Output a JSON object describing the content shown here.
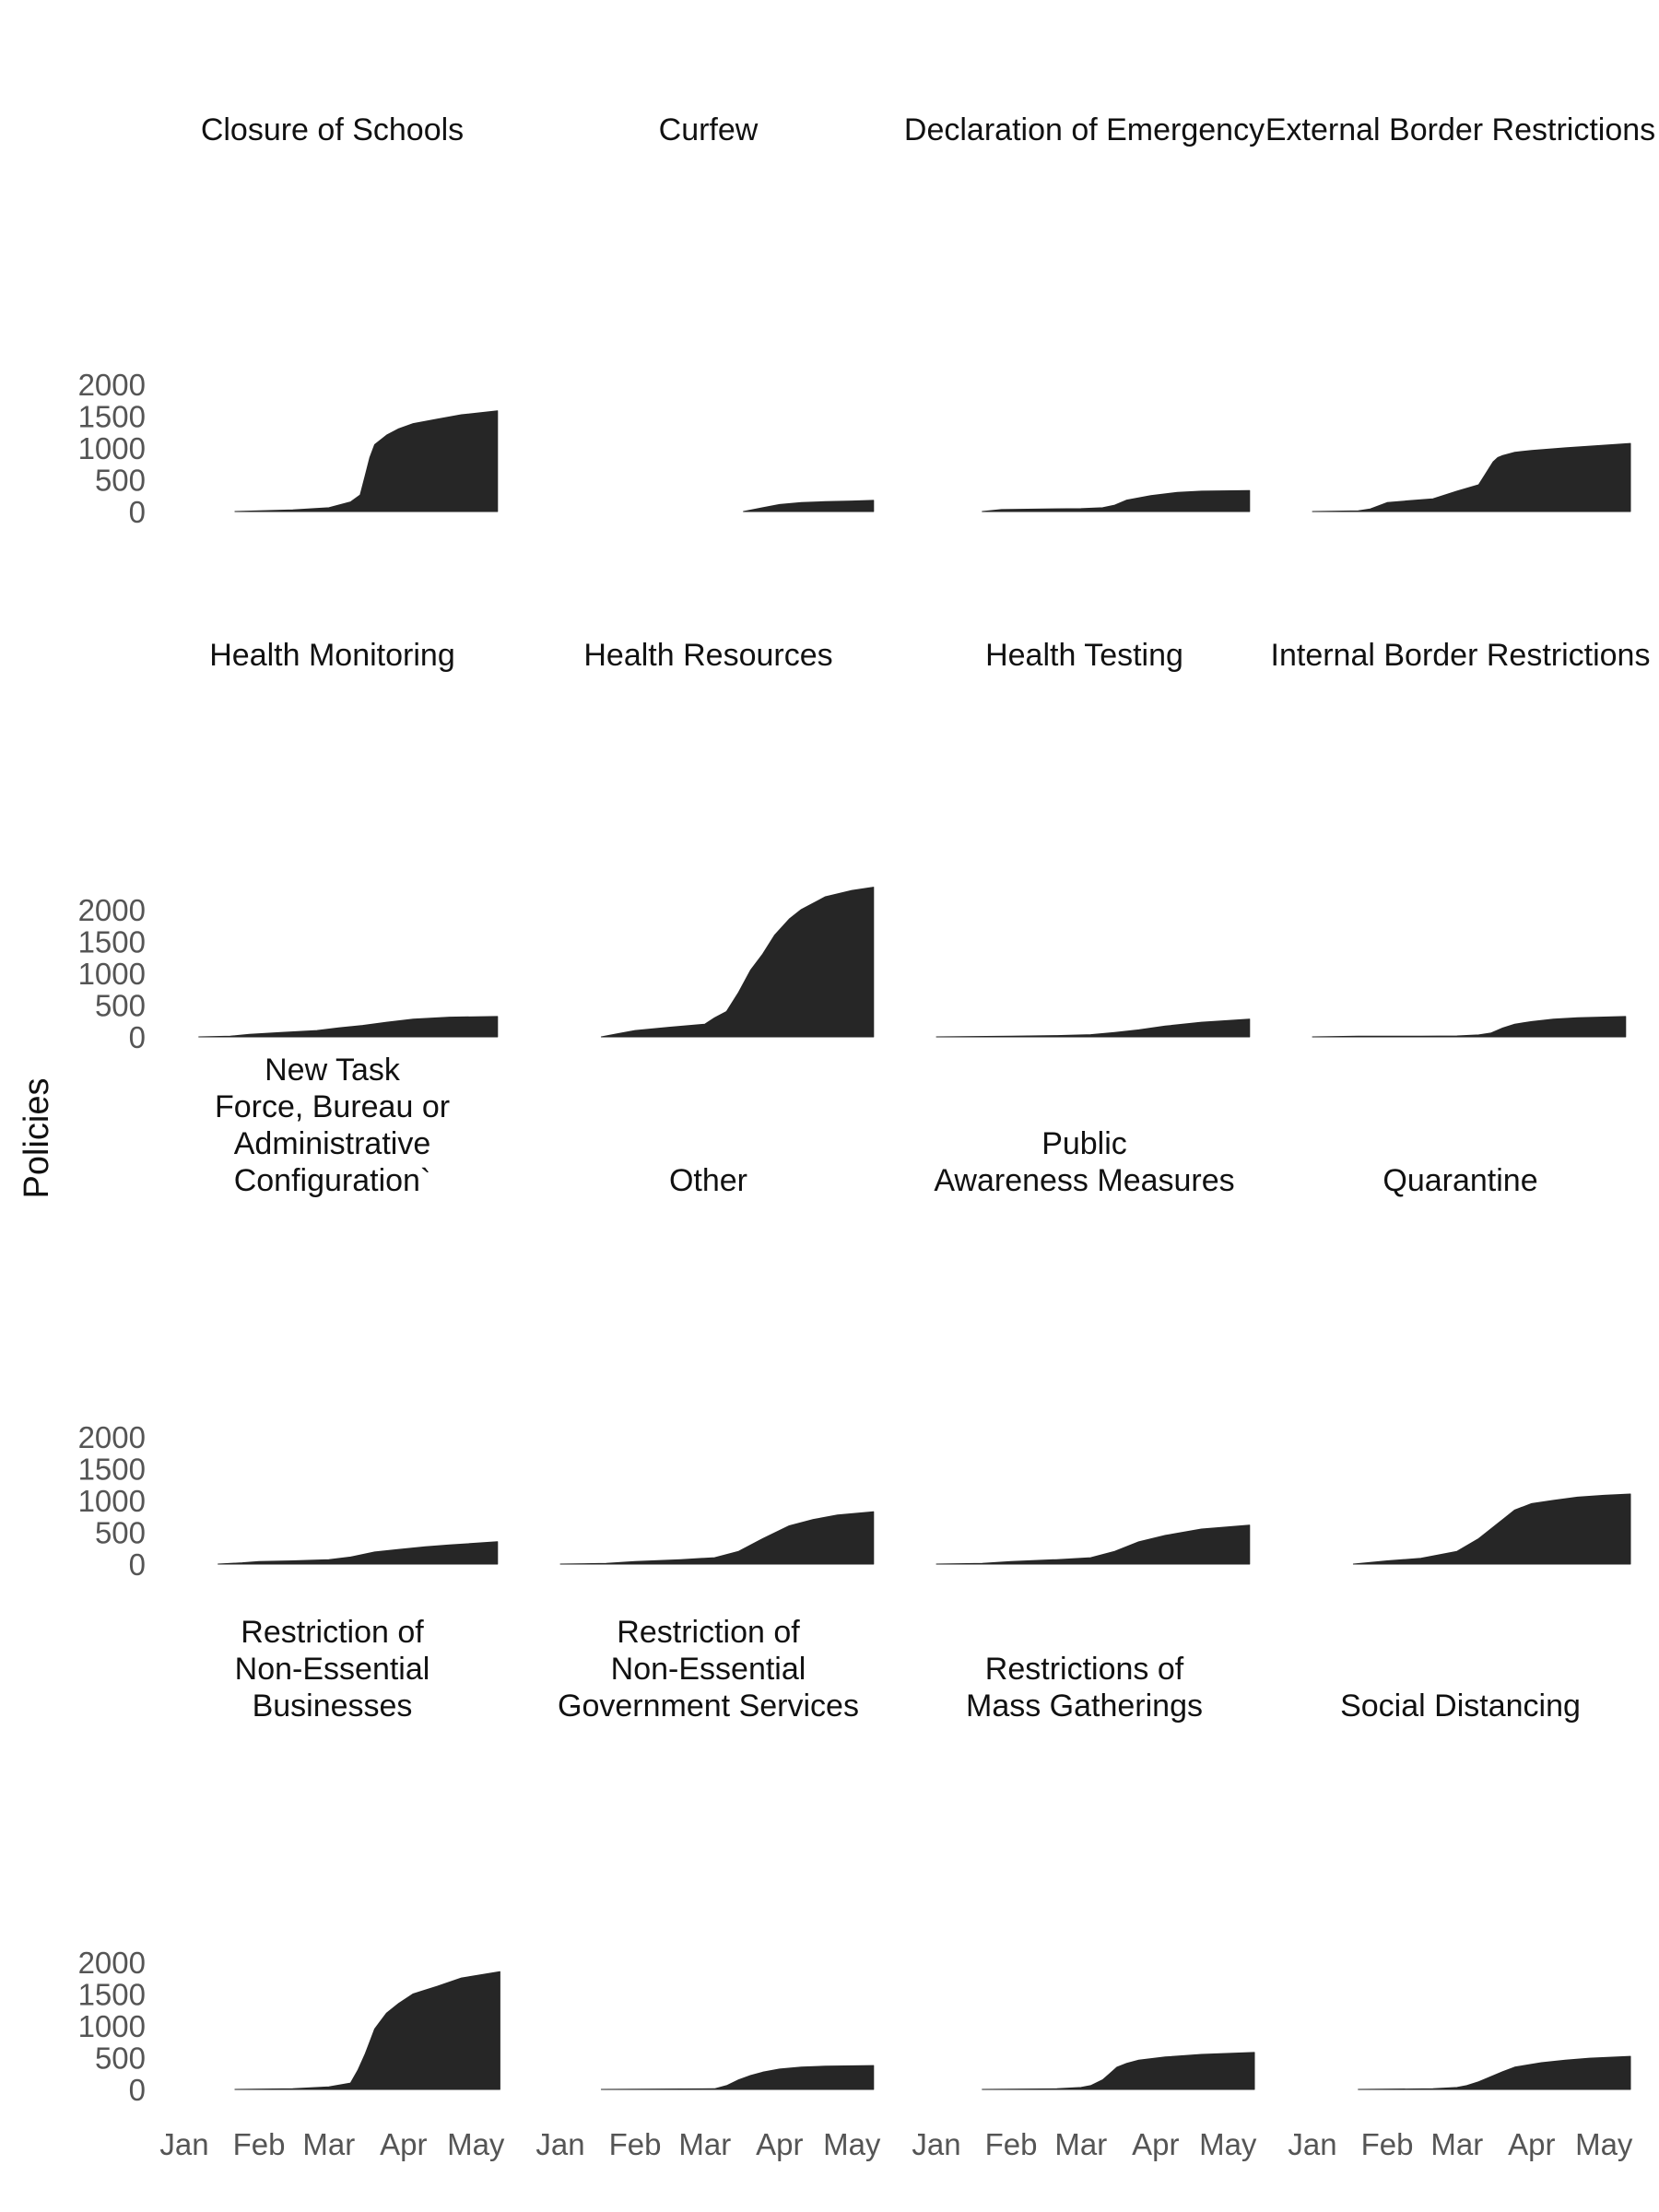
{
  "chart_data": {
    "type": "area",
    "ylabel": "Policies",
    "xlabel": "",
    "x_ticks": [
      "Jan",
      "Feb",
      "Mar",
      "Apr",
      "May"
    ],
    "x_tick_dates": [
      "2020-01-01",
      "2020-02-01",
      "2020-03-01",
      "2020-04-01",
      "2020-05-01"
    ],
    "y_ticks": [
      0,
      500,
      1000,
      1500,
      2000
    ],
    "ylim": [
      0,
      2350
    ],
    "xlim": [
      "2020-01-01",
      "2020-05-12"
    ],
    "fill_color": "#262626",
    "grid": false,
    "facets": [
      {
        "title": "Closure of Schools",
        "x": [
          "2020-01-22",
          "2020-02-01",
          "2020-02-15",
          "2020-03-01",
          "2020-03-10",
          "2020-03-14",
          "2020-03-16",
          "2020-03-18",
          "2020-03-20",
          "2020-03-25",
          "2020-03-30",
          "2020-04-05",
          "2020-04-15",
          "2020-04-25",
          "2020-05-10"
        ],
        "values": [
          0,
          10,
          25,
          60,
          150,
          260,
          550,
          850,
          1050,
          1200,
          1300,
          1380,
          1450,
          1520,
          1580
        ]
      },
      {
        "title": "Curfew",
        "x": [
          "2020-03-17",
          "2020-03-25",
          "2020-04-01",
          "2020-04-10",
          "2020-04-20",
          "2020-05-01",
          "2020-05-10"
        ],
        "values": [
          0,
          60,
          110,
          140,
          155,
          165,
          175
        ]
      },
      {
        "title": "Declaration of Emergency",
        "x": [
          "2020-01-20",
          "2020-01-28",
          "2020-02-15",
          "2020-03-01",
          "2020-03-10",
          "2020-03-15",
          "2020-03-20",
          "2020-03-30",
          "2020-04-10",
          "2020-04-20",
          "2020-05-10"
        ],
        "values": [
          0,
          30,
          40,
          45,
          60,
          100,
          180,
          250,
          300,
          320,
          330
        ]
      },
      {
        "title": "External Border Restrictions",
        "x": [
          "2020-01-01",
          "2020-01-20",
          "2020-01-25",
          "2020-02-01",
          "2020-02-10",
          "2020-02-20",
          "2020-03-01",
          "2020-03-10",
          "2020-03-13",
          "2020-03-16",
          "2020-03-18",
          "2020-03-20",
          "2020-03-25",
          "2020-04-01",
          "2020-04-15",
          "2020-05-12"
        ],
        "values": [
          0,
          10,
          40,
          140,
          170,
          200,
          320,
          420,
          600,
          780,
          850,
          880,
          930,
          960,
          1000,
          1070
        ]
      },
      {
        "title": "Health Monitoring",
        "x": [
          "2020-01-07",
          "2020-01-20",
          "2020-01-28",
          "2020-02-10",
          "2020-02-25",
          "2020-03-05",
          "2020-03-15",
          "2020-03-25",
          "2020-04-05",
          "2020-04-20",
          "2020-05-10"
        ],
        "values": [
          0,
          10,
          40,
          70,
          100,
          140,
          180,
          230,
          280,
          310,
          320
        ]
      },
      {
        "title": "Health Resources",
        "x": [
          "2020-01-18",
          "2020-01-25",
          "2020-02-01",
          "2020-02-15",
          "2020-03-01",
          "2020-03-05",
          "2020-03-10",
          "2020-03-15",
          "2020-03-20",
          "2020-03-25",
          "2020-03-30",
          "2020-04-05",
          "2020-04-10",
          "2020-04-15",
          "2020-04-20",
          "2020-05-01",
          "2020-05-10"
        ],
        "values": [
          0,
          50,
          100,
          150,
          200,
          300,
          400,
          700,
          1050,
          1300,
          1600,
          1850,
          2000,
          2100,
          2200,
          2300,
          2350
        ]
      },
      {
        "title": "Health Testing",
        "x": [
          "2020-01-01",
          "2020-02-01",
          "2020-02-20",
          "2020-03-05",
          "2020-03-15",
          "2020-03-25",
          "2020-04-05",
          "2020-04-20",
          "2020-05-10"
        ],
        "values": [
          0,
          10,
          20,
          35,
          70,
          110,
          170,
          230,
          280
        ]
      },
      {
        "title": "Internal Border Restrictions",
        "x": [
          "2020-01-01",
          "2020-01-20",
          "2020-02-15",
          "2020-03-01",
          "2020-03-10",
          "2020-03-15",
          "2020-03-20",
          "2020-03-25",
          "2020-04-01",
          "2020-04-10",
          "2020-04-20",
          "2020-05-10"
        ],
        "values": [
          0,
          10,
          12,
          15,
          30,
          60,
          140,
          200,
          240,
          280,
          300,
          320
        ]
      },
      {
        "title": "New Task\nForce, Bureau or\nAdministrative\nConfiguration`",
        "x": [
          "2020-01-15",
          "2020-01-25",
          "2020-02-01",
          "2020-02-15",
          "2020-03-01",
          "2020-03-10",
          "2020-03-20",
          "2020-03-30",
          "2020-04-10",
          "2020-04-20",
          "2020-05-10"
        ],
        "values": [
          0,
          20,
          40,
          50,
          70,
          110,
          190,
          230,
          270,
          300,
          350
        ]
      },
      {
        "title": "Other",
        "x": [
          "2020-01-01",
          "2020-01-20",
          "2020-02-01",
          "2020-02-20",
          "2020-03-05",
          "2020-03-15",
          "2020-03-25",
          "2020-04-05",
          "2020-04-15",
          "2020-04-25",
          "2020-05-10"
        ],
        "values": [
          0,
          10,
          40,
          70,
          100,
          200,
          400,
          600,
          700,
          770,
          820
        ]
      },
      {
        "title": "Public\nAwareness Measures",
        "x": [
          "2020-01-01",
          "2020-01-20",
          "2020-02-01",
          "2020-02-20",
          "2020-03-05",
          "2020-03-15",
          "2020-03-25",
          "2020-04-05",
          "2020-04-20",
          "2020-05-10"
        ],
        "values": [
          0,
          10,
          40,
          70,
          100,
          200,
          350,
          450,
          550,
          610
        ]
      },
      {
        "title": "Quarantine",
        "x": [
          "2020-01-18",
          "2020-02-01",
          "2020-02-15",
          "2020-03-01",
          "2020-03-10",
          "2020-03-15",
          "2020-03-20",
          "2020-03-25",
          "2020-04-01",
          "2020-04-10",
          "2020-04-20",
          "2020-05-01",
          "2020-05-12"
        ],
        "values": [
          0,
          50,
          90,
          200,
          400,
          550,
          700,
          850,
          950,
          1000,
          1050,
          1080,
          1100
        ]
      },
      {
        "title": "Restriction of\nNon-Essential\nBusinesses",
        "x": [
          "2020-01-22",
          "2020-02-15",
          "2020-03-01",
          "2020-03-10",
          "2020-03-13",
          "2020-03-16",
          "2020-03-18",
          "2020-03-20",
          "2020-03-22",
          "2020-03-25",
          "2020-03-30",
          "2020-04-05",
          "2020-04-15",
          "2020-04-25",
          "2020-05-11"
        ],
        "values": [
          0,
          10,
          40,
          100,
          300,
          550,
          750,
          950,
          1050,
          1200,
          1350,
          1500,
          1620,
          1750,
          1850
        ]
      },
      {
        "title": "Restriction of\nNon-Essential\nGovernment Services",
        "x": [
          "2020-01-18",
          "2020-03-05",
          "2020-03-10",
          "2020-03-15",
          "2020-03-20",
          "2020-03-25",
          "2020-04-01",
          "2020-04-10",
          "2020-04-20",
          "2020-05-10"
        ],
        "values": [
          0,
          10,
          60,
          150,
          220,
          270,
          320,
          350,
          365,
          375
        ]
      },
      {
        "title": "Restrictions of\nMass Gatherings",
        "x": [
          "2020-01-20",
          "2020-02-20",
          "2020-03-01",
          "2020-03-05",
          "2020-03-10",
          "2020-03-13",
          "2020-03-16",
          "2020-03-20",
          "2020-03-25",
          "2020-04-05",
          "2020-04-20",
          "2020-05-12"
        ],
        "values": [
          0,
          10,
          30,
          60,
          150,
          250,
          350,
          410,
          460,
          510,
          550,
          580
        ]
      },
      {
        "title": "Social Distancing",
        "x": [
          "2020-01-20",
          "2020-02-20",
          "2020-03-01",
          "2020-03-05",
          "2020-03-10",
          "2020-03-15",
          "2020-03-20",
          "2020-03-25",
          "2020-04-05",
          "2020-04-15",
          "2020-04-25",
          "2020-05-12"
        ],
        "values": [
          0,
          10,
          30,
          60,
          120,
          200,
          280,
          350,
          420,
          460,
          490,
          520
        ]
      }
    ]
  }
}
